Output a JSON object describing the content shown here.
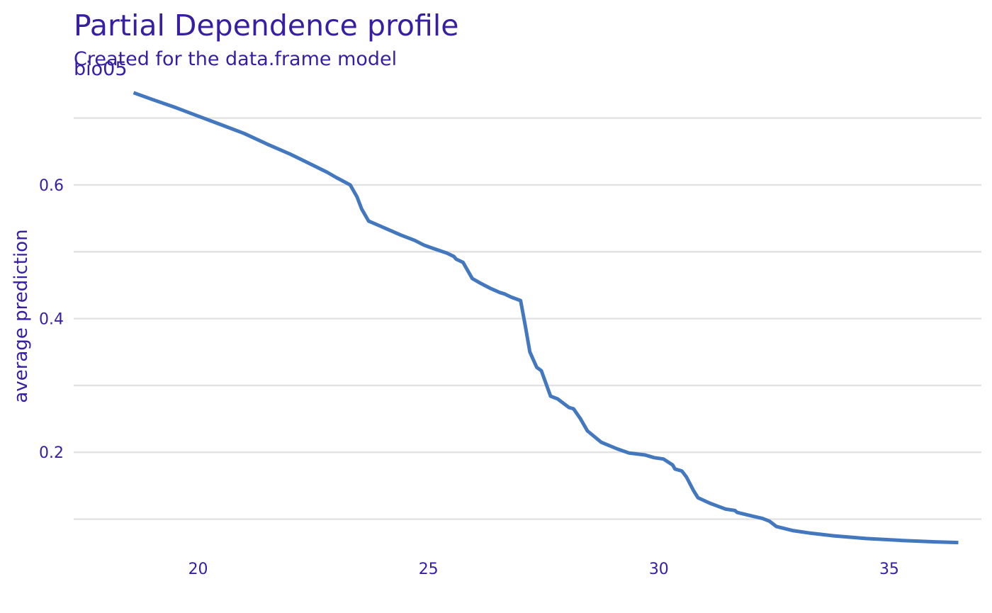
{
  "colors": {
    "text": "#371ea3",
    "line": "#4378bf",
    "grid": "#e2e2e2",
    "background": "#ffffff"
  },
  "chart_data": {
    "type": "line",
    "title": "Partial Dependence profile",
    "subtitle": "Created for the data.frame model",
    "panel_label": "bio05",
    "xlabel": "",
    "ylabel": "average prediction",
    "xlim": [
      17.3,
      37.0
    ],
    "ylim": [
      0.055,
      0.76
    ],
    "x_ticks": [
      20,
      25,
      30,
      35
    ],
    "x_tick_labels": [
      "20",
      "25",
      "30",
      "35"
    ],
    "y_ticks": [
      0.2,
      0.4,
      0.6
    ],
    "y_tick_labels": [
      "0.2",
      "0.4",
      "0.6"
    ],
    "y_minor_gridlines": [
      0.1,
      0.3,
      0.5,
      0.7
    ],
    "grid": true,
    "legend": "none",
    "series": [
      {
        "x": [
          18.6,
          19.0,
          19.5,
          20.0,
          20.5,
          21.0,
          21.5,
          22.0,
          22.3,
          22.8,
          23.0,
          23.3,
          23.45,
          23.55,
          23.7,
          23.9,
          24.1,
          24.4,
          24.7,
          24.9,
          25.1,
          25.4,
          25.55,
          25.6,
          25.75,
          25.95,
          26.1,
          26.35,
          26.55,
          26.65,
          26.8,
          27.0,
          27.1,
          27.2,
          27.35,
          27.45,
          27.65,
          27.8,
          28.05,
          28.15,
          28.3,
          28.45,
          28.75,
          29.1,
          29.35,
          29.7,
          29.9,
          30.1,
          30.3,
          30.35,
          30.5,
          30.6,
          30.75,
          30.85,
          31.1,
          31.45,
          31.65,
          31.7,
          32.0,
          32.25,
          32.4,
          32.55,
          32.9,
          33.3,
          33.8,
          34.5,
          35.3,
          36.0,
          36.5
        ],
        "y": [
          0.738,
          0.728,
          0.716,
          0.703,
          0.69,
          0.677,
          0.661,
          0.646,
          0.636,
          0.619,
          0.611,
          0.6,
          0.582,
          0.564,
          0.546,
          0.54,
          0.534,
          0.525,
          0.517,
          0.51,
          0.505,
          0.498,
          0.493,
          0.489,
          0.484,
          0.46,
          0.454,
          0.445,
          0.439,
          0.437,
          0.432,
          0.427,
          0.39,
          0.35,
          0.327,
          0.322,
          0.284,
          0.28,
          0.267,
          0.265,
          0.25,
          0.232,
          0.215,
          0.205,
          0.199,
          0.196,
          0.192,
          0.19,
          0.181,
          0.175,
          0.172,
          0.163,
          0.143,
          0.132,
          0.124,
          0.115,
          0.113,
          0.11,
          0.105,
          0.101,
          0.097,
          0.089,
          0.083,
          0.079,
          0.075,
          0.071,
          0.068,
          0.066,
          0.065
        ]
      }
    ]
  }
}
